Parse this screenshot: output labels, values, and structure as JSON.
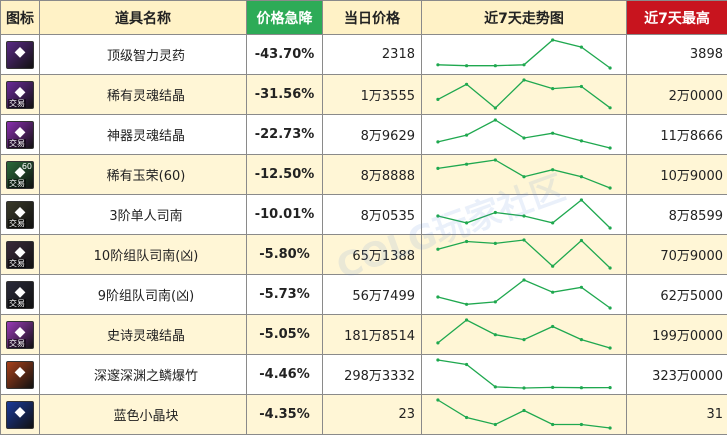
{
  "headers": {
    "icon": "图标",
    "name": "道具名称",
    "drop": "价格急降",
    "today": "当日价格",
    "trend": "近7天走势图",
    "max": "近7天最高"
  },
  "watermark": "COLG玩家社区",
  "colors": {
    "header_bg": "#fff2c6",
    "drop_header": "#2dab57",
    "max_header": "#c8141e",
    "drop_text": "#1a9a47",
    "trend_line": "#1fa84f",
    "row_alt": "#fff6d6"
  },
  "rows": [
    {
      "icon": "potion-icon",
      "icon_color": "#5a2a86",
      "icon_tag": "",
      "icon_lvl": "",
      "name": "顶级智力灵药",
      "drop": "-43.70%",
      "today": "2318",
      "max": "3898"
    },
    {
      "icon": "soul-crystal-icon",
      "icon_color": "#6b2a9a",
      "icon_tag": "交易",
      "icon_lvl": "",
      "name": "稀有灵魂结晶",
      "drop": "-31.56%",
      "today": "1万3555",
      "max": "2万0000"
    },
    {
      "icon": "soul-crystal-icon",
      "icon_color": "#8a2fb0",
      "icon_tag": "交易",
      "icon_lvl": "",
      "name": "神器灵魂结晶",
      "drop": "-22.73%",
      "today": "8万9629",
      "max": "11万8666"
    },
    {
      "icon": "jade-icon",
      "icon_color": "#2a6a3a",
      "icon_tag": "交易",
      "icon_lvl": "60",
      "name": "稀有玉荣(60)",
      "drop": "-12.50%",
      "today": "8万8888",
      "max": "10万9000"
    },
    {
      "icon": "compass-icon",
      "icon_color": "#3a3a2a",
      "icon_tag": "交易",
      "icon_lvl": "",
      "name": "3阶单人司南",
      "drop": "-10.01%",
      "today": "8万0535",
      "max": "8万8599"
    },
    {
      "icon": "compass-icon",
      "icon_color": "#3a2a3a",
      "icon_tag": "交易",
      "icon_lvl": "",
      "name": "10阶组队司南(凶)",
      "drop": "-5.80%",
      "today": "65万1388",
      "max": "70万9000"
    },
    {
      "icon": "compass-icon",
      "icon_color": "#2a2a3a",
      "icon_tag": "交易",
      "icon_lvl": "",
      "name": "9阶组队司南(凶)",
      "drop": "-5.73%",
      "today": "56万7499",
      "max": "62万5000"
    },
    {
      "icon": "soul-crystal-icon",
      "icon_color": "#9a3ab8",
      "icon_tag": "交易",
      "icon_lvl": "",
      "name": "史诗灵魂结晶",
      "drop": "-5.05%",
      "today": "181万8514",
      "max": "199万0000"
    },
    {
      "icon": "firecracker-icon",
      "icon_color": "#a8401a",
      "icon_tag": "",
      "icon_lvl": "",
      "name": "深邃深渊之鳞爆竹",
      "drop": "-4.46%",
      "today": "298万3332",
      "max": "323万0000"
    },
    {
      "icon": "blue-crystal-icon",
      "icon_color": "#1a3a9a",
      "icon_tag": "",
      "icon_lvl": "",
      "name": "蓝色小晶块",
      "drop": "-4.35%",
      "today": "23",
      "max": "31"
    }
  ],
  "chart_data": {
    "type": "line",
    "title": "近7天走势图",
    "x": [
      1,
      2,
      3,
      4,
      5,
      6,
      7
    ],
    "series": [
      {
        "name": "顶级智力灵药",
        "values": [
          2500,
          2450,
          2450,
          2500,
          3898,
          3500,
          2318
        ]
      },
      {
        "name": "稀有灵魂结晶",
        "values": [
          15500,
          19000,
          13500,
          20000,
          18000,
          18500,
          13555
        ]
      },
      {
        "name": "神器灵魂结晶",
        "values": [
          96000,
          103000,
          118666,
          100000,
          105000,
          97000,
          89629
        ]
      },
      {
        "name": "稀有玉荣(60)",
        "values": [
          103000,
          106000,
          109000,
          97000,
          102000,
          97000,
          88888
        ]
      },
      {
        "name": "3阶单人司南",
        "values": [
          84000,
          82000,
          85000,
          84000,
          82000,
          88599,
          80535
        ]
      },
      {
        "name": "10阶组队司南(凶)",
        "values": [
          690000,
          706000,
          702000,
          709000,
          655000,
          708000,
          651388
        ]
      },
      {
        "name": "9阶组队司南(凶)",
        "values": [
          590000,
          575000,
          580000,
          625000,
          600000,
          610000,
          567499
        ]
      },
      {
        "name": "史诗灵魂结晶",
        "values": [
          1850000,
          1990000,
          1900000,
          1870000,
          1950000,
          1870000,
          1818514
        ]
      },
      {
        "name": "深邃深渊之鳞爆竹",
        "values": [
          3230000,
          3190000,
          2990000,
          2980000,
          2985000,
          2983000,
          2983332
        ]
      },
      {
        "name": "蓝色小晶块",
        "values": [
          31,
          26,
          24,
          28,
          24,
          24,
          23
        ]
      }
    ]
  }
}
